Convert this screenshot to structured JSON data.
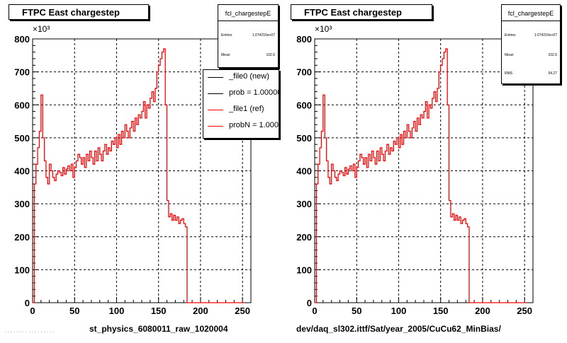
{
  "footer": "· · · · · · · · · · · · · · · · ·",
  "panels": [
    {
      "title": "FTPC East chargestep",
      "hist_name": "fcl_chargestepE",
      "stats": [
        {
          "label": "Entries",
          "value": "1.074216e+07"
        },
        {
          "label": "Mean",
          "value": "102.6"
        }
      ],
      "legend": [
        {
          "label": "_file0 (new)",
          "color": "#000000"
        },
        {
          "label": "prob = 1.000000",
          "color": "#000000"
        },
        {
          "label": "_file1 (ref)",
          "color": "#ff0000"
        },
        {
          "label": "probN = 1.000000",
          "color": "#ff0000"
        }
      ],
      "xlabel": "st_physics_6080011_raw_1020004",
      "exponent": "×10³"
    },
    {
      "title": "FTPC East chargestep",
      "hist_name": "fcl_chargestepE",
      "stats": [
        {
          "label": "Entries",
          "value": "1.074216e+07"
        },
        {
          "label": "Mean",
          "value": "102.6"
        },
        {
          "label": "RMS",
          "value": "54.27"
        }
      ],
      "xlabel": "dev/daq_sl302.ittf/Sat/year_2005/CuCu62_MinBias/",
      "exponent": "×10³"
    }
  ],
  "chart_data": [
    {
      "type": "histogram",
      "title": "FTPC East chargestep",
      "xlabel": "st_physics_6080011_raw_1020004",
      "ylabel": "",
      "xlim": [
        0,
        260
      ],
      "ylim": [
        0,
        800
      ],
      "y_multiplier": 1000,
      "x_ticks": [
        0,
        50,
        100,
        150,
        200,
        250
      ],
      "y_ticks": [
        0,
        100,
        200,
        300,
        400,
        500,
        600,
        700,
        800
      ],
      "grid": true,
      "legend_position": "top-right",
      "series": [
        {
          "name": "_file1 (ref)",
          "color": "#ff0000",
          "x": [
            0,
            2,
            4,
            6,
            8,
            10,
            12,
            14,
            16,
            18,
            20,
            22,
            24,
            26,
            28,
            30,
            32,
            34,
            36,
            38,
            40,
            42,
            44,
            46,
            48,
            50,
            52,
            54,
            56,
            58,
            60,
            62,
            64,
            66,
            68,
            70,
            72,
            74,
            76,
            78,
            80,
            82,
            84,
            86,
            88,
            90,
            92,
            94,
            96,
            98,
            100,
            102,
            104,
            106,
            108,
            110,
            112,
            114,
            116,
            118,
            120,
            122,
            124,
            126,
            128,
            130,
            132,
            134,
            136,
            138,
            140,
            142,
            144,
            146,
            148,
            150,
            152,
            154,
            156,
            158,
            160,
            162,
            164,
            166,
            168,
            170,
            172,
            174,
            176,
            178,
            180,
            182,
            184,
            186,
            188,
            190,
            192,
            194,
            196,
            198,
            200,
            202,
            210,
            220,
            230,
            240,
            250
          ],
          "y": [
            0,
            360,
            420,
            470,
            520,
            630,
            500,
            430,
            380,
            360,
            420,
            400,
            380,
            370,
            390,
            400,
            395,
            385,
            410,
            390,
            405,
            415,
            400,
            420,
            380,
            410,
            430,
            450,
            440,
            420,
            440,
            410,
            450,
            430,
            460,
            440,
            420,
            460,
            430,
            470,
            450,
            430,
            460,
            480,
            450,
            470,
            460,
            490,
            480,
            500,
            470,
            510,
            480,
            520,
            500,
            540,
            520,
            500,
            530,
            550,
            520,
            560,
            540,
            570,
            560,
            580,
            610,
            560,
            600,
            590,
            620,
            640,
            610,
            650,
            700,
            720,
            740,
            760,
            770,
            600,
            310,
            260,
            270,
            250,
            265,
            250,
            260,
            240,
            250,
            255,
            240,
            230,
            0,
            0,
            0,
            0,
            0,
            0,
            0,
            0,
            0,
            0,
            0,
            0,
            0,
            0,
            0
          ]
        }
      ]
    },
    {
      "type": "histogram",
      "title": "FTPC East chargestep",
      "xlabel": "dev/daq_sl302.ittf/Sat/year_2005/CuCu62_MinBias/",
      "ylabel": "",
      "xlim": [
        0,
        260
      ],
      "ylim": [
        0,
        800
      ],
      "y_multiplier": 1000,
      "x_ticks": [
        0,
        50,
        100,
        150,
        200,
        250
      ],
      "y_ticks": [
        0,
        100,
        200,
        300,
        400,
        500,
        600,
        700,
        800
      ],
      "grid": true,
      "series": [
        {
          "name": "",
          "color": "#ff0000",
          "x": [
            0,
            2,
            4,
            6,
            8,
            10,
            12,
            14,
            16,
            18,
            20,
            22,
            24,
            26,
            28,
            30,
            32,
            34,
            36,
            38,
            40,
            42,
            44,
            46,
            48,
            50,
            52,
            54,
            56,
            58,
            60,
            62,
            64,
            66,
            68,
            70,
            72,
            74,
            76,
            78,
            80,
            82,
            84,
            86,
            88,
            90,
            92,
            94,
            96,
            98,
            100,
            102,
            104,
            106,
            108,
            110,
            112,
            114,
            116,
            118,
            120,
            122,
            124,
            126,
            128,
            130,
            132,
            134,
            136,
            138,
            140,
            142,
            144,
            146,
            148,
            150,
            152,
            154,
            156,
            158,
            160,
            162,
            164,
            166,
            168,
            170,
            172,
            174,
            176,
            178,
            180,
            182,
            184,
            186,
            188,
            190,
            192,
            194,
            196,
            198,
            200,
            202,
            210,
            220,
            230,
            240,
            250
          ],
          "y": [
            0,
            360,
            420,
            470,
            520,
            630,
            500,
            430,
            380,
            360,
            420,
            400,
            380,
            370,
            390,
            400,
            395,
            385,
            410,
            390,
            405,
            415,
            400,
            420,
            380,
            410,
            430,
            450,
            440,
            420,
            440,
            410,
            450,
            430,
            460,
            440,
            420,
            460,
            430,
            470,
            450,
            430,
            460,
            480,
            450,
            470,
            460,
            490,
            480,
            500,
            470,
            510,
            480,
            520,
            500,
            540,
            520,
            500,
            530,
            550,
            520,
            560,
            540,
            570,
            560,
            580,
            610,
            560,
            600,
            590,
            620,
            640,
            610,
            650,
            700,
            720,
            740,
            760,
            770,
            600,
            310,
            260,
            270,
            250,
            265,
            250,
            260,
            240,
            250,
            255,
            240,
            230,
            0,
            0,
            0,
            0,
            0,
            0,
            0,
            0,
            0,
            0,
            0,
            0,
            0,
            0,
            0
          ]
        }
      ]
    }
  ]
}
